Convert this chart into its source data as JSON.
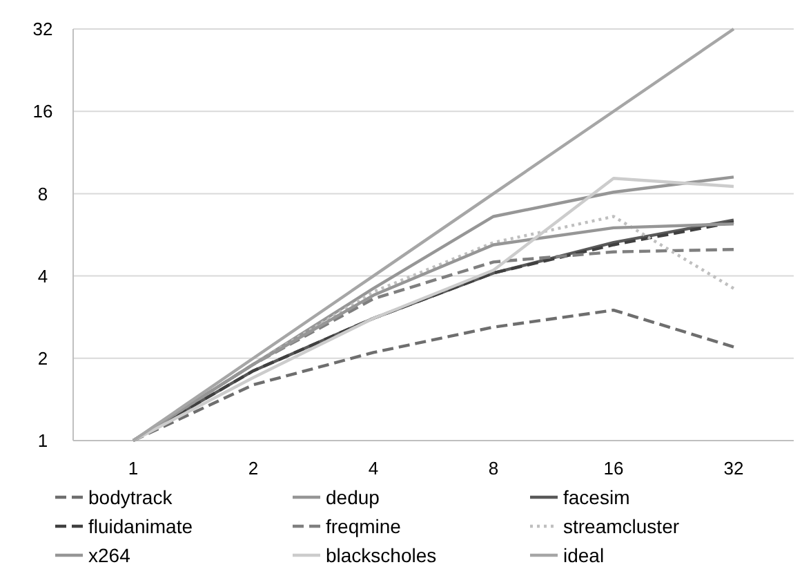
{
  "chart_data": {
    "type": "line",
    "categories": [
      "1",
      "2",
      "4",
      "8",
      "16",
      "32"
    ],
    "log": "y",
    "ylim": [
      1,
      32
    ],
    "yticks": [
      1,
      2,
      4,
      8,
      16,
      32
    ],
    "grid": "y",
    "legend": "bottom",
    "series": [
      {
        "name": "bodytrack",
        "color": "#6e6e6e",
        "line_style": "dashed",
        "values": [
          1,
          1.6,
          2.1,
          2.6,
          3.0,
          2.2
        ]
      },
      {
        "name": "dedup",
        "color": "#969696",
        "values": [
          1,
          1.9,
          3.6,
          6.6,
          8.1,
          9.2
        ]
      },
      {
        "name": "facesim",
        "color": "#595959",
        "values": [
          1,
          1.8,
          2.8,
          4.1,
          5.3,
          6.4
        ]
      },
      {
        "name": "fluidanimate",
        "color": "#404040",
        "line_style": "dashed",
        "values": [
          1,
          1.8,
          2.8,
          4.1,
          5.2,
          6.3
        ]
      },
      {
        "name": "freqmine",
        "color": "#7f7f7f",
        "line_style": "dashed",
        "values": [
          1,
          1.9,
          3.3,
          4.5,
          4.9,
          5.0
        ]
      },
      {
        "name": "streamcluster",
        "color": "#bfbfbf",
        "line_style": "dotted",
        "values": [
          1,
          1.9,
          3.5,
          5.3,
          6.6,
          3.6
        ]
      },
      {
        "name": "x264",
        "color": "#969696",
        "values": [
          1,
          1.9,
          3.4,
          5.2,
          6.0,
          6.2
        ]
      },
      {
        "name": "blackscholes",
        "color": "#cccccc",
        "values": [
          1,
          1.7,
          2.8,
          4.2,
          9.1,
          8.5
        ]
      },
      {
        "name": "ideal",
        "color": "#a6a6a6",
        "values": [
          1,
          2,
          4,
          8,
          16,
          32
        ]
      }
    ]
  }
}
